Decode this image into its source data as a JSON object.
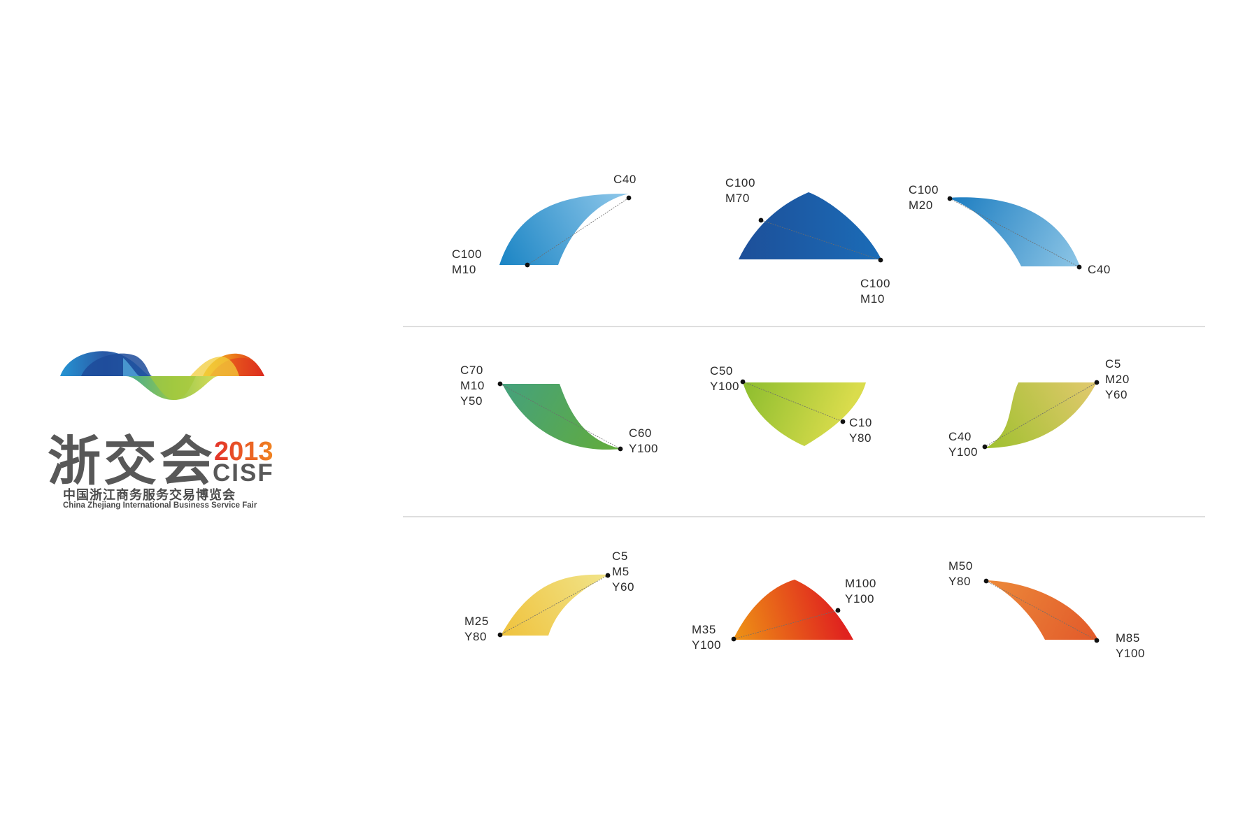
{
  "logo": {
    "name_cn": "浙交会",
    "year": "2013",
    "abbr": "CISF",
    "full_name_cn": "中国浙江商务服务交易博览会",
    "full_name_en": "China Zhejiang International Business Service Fair",
    "colors": {
      "year": "#d6342a",
      "wordmark": "#585858"
    }
  },
  "swatches": [
    {
      "id": "blue-1",
      "start_label": [
        "C100",
        "M10"
      ],
      "end_label": [
        "C40"
      ],
      "colors": [
        "#1a84c4",
        "#90c8ea"
      ]
    },
    {
      "id": "blue-2",
      "start_label": [
        "C100",
        "M70"
      ],
      "end_label": [
        "C100",
        "M10"
      ],
      "colors": [
        "#1d4f99",
        "#1b6cb7"
      ]
    },
    {
      "id": "blue-3",
      "start_label": [
        "C100",
        "M20"
      ],
      "end_label": [
        "C40"
      ],
      "colors": [
        "#1b7cc0",
        "#8ec6e6"
      ]
    },
    {
      "id": "green-1",
      "start_label": [
        "C70",
        "M10",
        "Y50"
      ],
      "end_label": [
        "C60",
        "Y100"
      ],
      "colors": [
        "#44a17d",
        "#63ac3a"
      ]
    },
    {
      "id": "green-2",
      "start_label": [
        "C50",
        "Y100"
      ],
      "end_label": [
        "C10",
        "Y80"
      ],
      "colors": [
        "#8cbd2e",
        "#dadc4c"
      ]
    },
    {
      "id": "green-3",
      "start_label": [
        "C5",
        "M20",
        "Y60"
      ],
      "end_label": [
        "C40",
        "Y100"
      ],
      "colors": [
        "#9ec02e",
        "#e2c96e"
      ]
    },
    {
      "id": "warm-1",
      "start_label": [
        "M25",
        "Y80"
      ],
      "end_label": [
        "C5",
        "M5",
        "Y60"
      ],
      "colors": [
        "#efc23c",
        "#f1e48a"
      ]
    },
    {
      "id": "warm-2",
      "start_label": [
        "M35",
        "Y100"
      ],
      "end_label": [
        "M100",
        "Y100"
      ],
      "colors": [
        "#ee9515",
        "#e0231f"
      ]
    },
    {
      "id": "warm-3",
      "start_label": [
        "M50",
        "Y80"
      ],
      "end_label": [
        "M85",
        "Y100"
      ],
      "colors": [
        "#ec8a3a",
        "#e2592a"
      ]
    }
  ]
}
